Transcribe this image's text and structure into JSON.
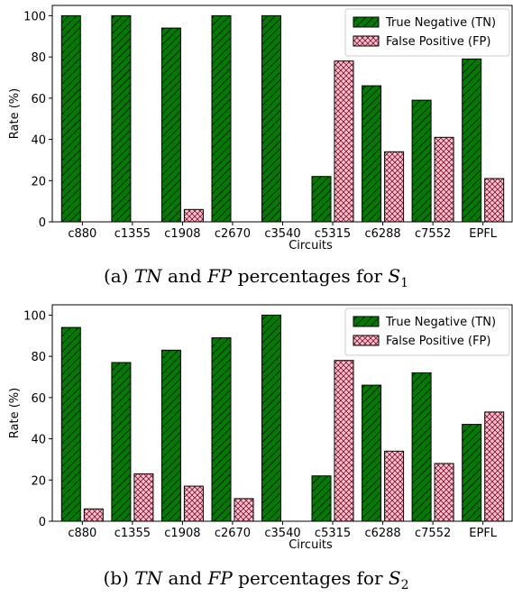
{
  "captions": [
    {
      "label": "(a)",
      "var1": "TN",
      "word": "and",
      "var2": "FP",
      "rest": "percentages for",
      "sym": "S",
      "sub": "1"
    },
    {
      "label": "(b)",
      "var1": "TN",
      "word": "and",
      "var2": "FP",
      "rest": "percentages for",
      "sym": "S",
      "sub": "2"
    }
  ],
  "colors": {
    "tn": "#047a04",
    "fp": "#f8c8c8",
    "fp_hatch": "#a01050",
    "edge": "#000000"
  },
  "chart_data": [
    {
      "type": "bar",
      "xlabel": "Circuits",
      "ylabel": "Rate (%)",
      "ylim": [
        0,
        105
      ],
      "yticks": [
        0,
        20,
        40,
        60,
        80,
        100
      ],
      "legend_position": "top-right",
      "grid": false,
      "categories": [
        "c880",
        "c1355",
        "c1908",
        "c2670",
        "c3540",
        "c5315",
        "c6288",
        "c7552",
        "EPFL"
      ],
      "series": [
        {
          "name": "True Negative (TN)",
          "values": [
            100,
            100,
            94,
            100,
            100,
            22,
            66,
            59,
            79
          ]
        },
        {
          "name": "False Positive (FP)",
          "values": [
            0,
            0,
            6,
            0,
            0,
            78,
            34,
            41,
            21
          ]
        }
      ]
    },
    {
      "type": "bar",
      "xlabel": "Circuits",
      "ylabel": "Rate (%)",
      "ylim": [
        0,
        105
      ],
      "yticks": [
        0,
        20,
        40,
        60,
        80,
        100
      ],
      "legend_position": "top-right",
      "grid": false,
      "categories": [
        "c880",
        "c1355",
        "c1908",
        "c2670",
        "c3540",
        "c5315",
        "c6288",
        "c7552",
        "EPFL"
      ],
      "series": [
        {
          "name": "True Negative (TN)",
          "values": [
            94,
            77,
            83,
            89,
            100,
            22,
            66,
            72,
            47
          ]
        },
        {
          "name": "False Positive (FP)",
          "values": [
            6,
            23,
            17,
            11,
            0,
            78,
            34,
            28,
            53
          ]
        }
      ]
    }
  ]
}
